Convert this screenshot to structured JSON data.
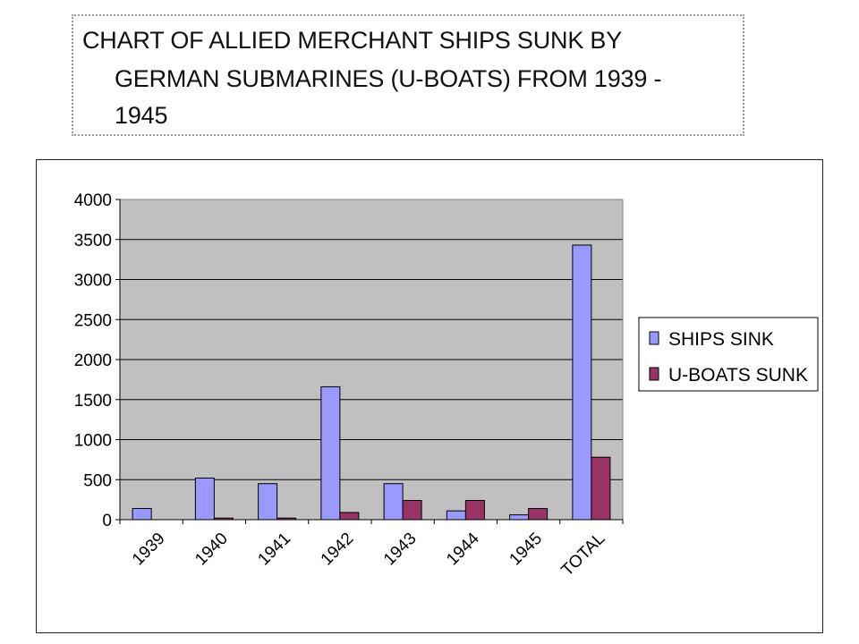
{
  "chart_data": {
    "type": "bar",
    "title": "CHART OF ALLIED MERCHANT SHIPS SUNK BY GERMAN SUBMARINES (U-BOATS) FROM 1939 - 1945",
    "title_lines": [
      "CHART OF ALLIED MERCHANT SHIPS SUNK BY",
      "GERMAN SUBMARINES (U-BOATS) FROM 1939 -",
      "1945"
    ],
    "categories": [
      "1939",
      "1940",
      "1941",
      "1942",
      "1943",
      "1944",
      "1945",
      "TOTAL"
    ],
    "series": [
      {
        "name": "SHIPS SINK",
        "color": "#9999ff",
        "values": [
          140,
          520,
          450,
          1660,
          450,
          110,
          60,
          3430
        ]
      },
      {
        "name": "U-BOATS SUNK",
        "color": "#993366",
        "values": [
          0,
          20,
          20,
          90,
          240,
          240,
          140,
          780
        ]
      }
    ],
    "ylim": [
      0,
      4000
    ],
    "yticks": [
      0,
      500,
      1000,
      1500,
      2000,
      2500,
      3000,
      3500,
      4000
    ],
    "xlabel": "",
    "ylabel": "",
    "grid": true,
    "plot_background": "#c0c0c0",
    "legend_position": "right"
  }
}
